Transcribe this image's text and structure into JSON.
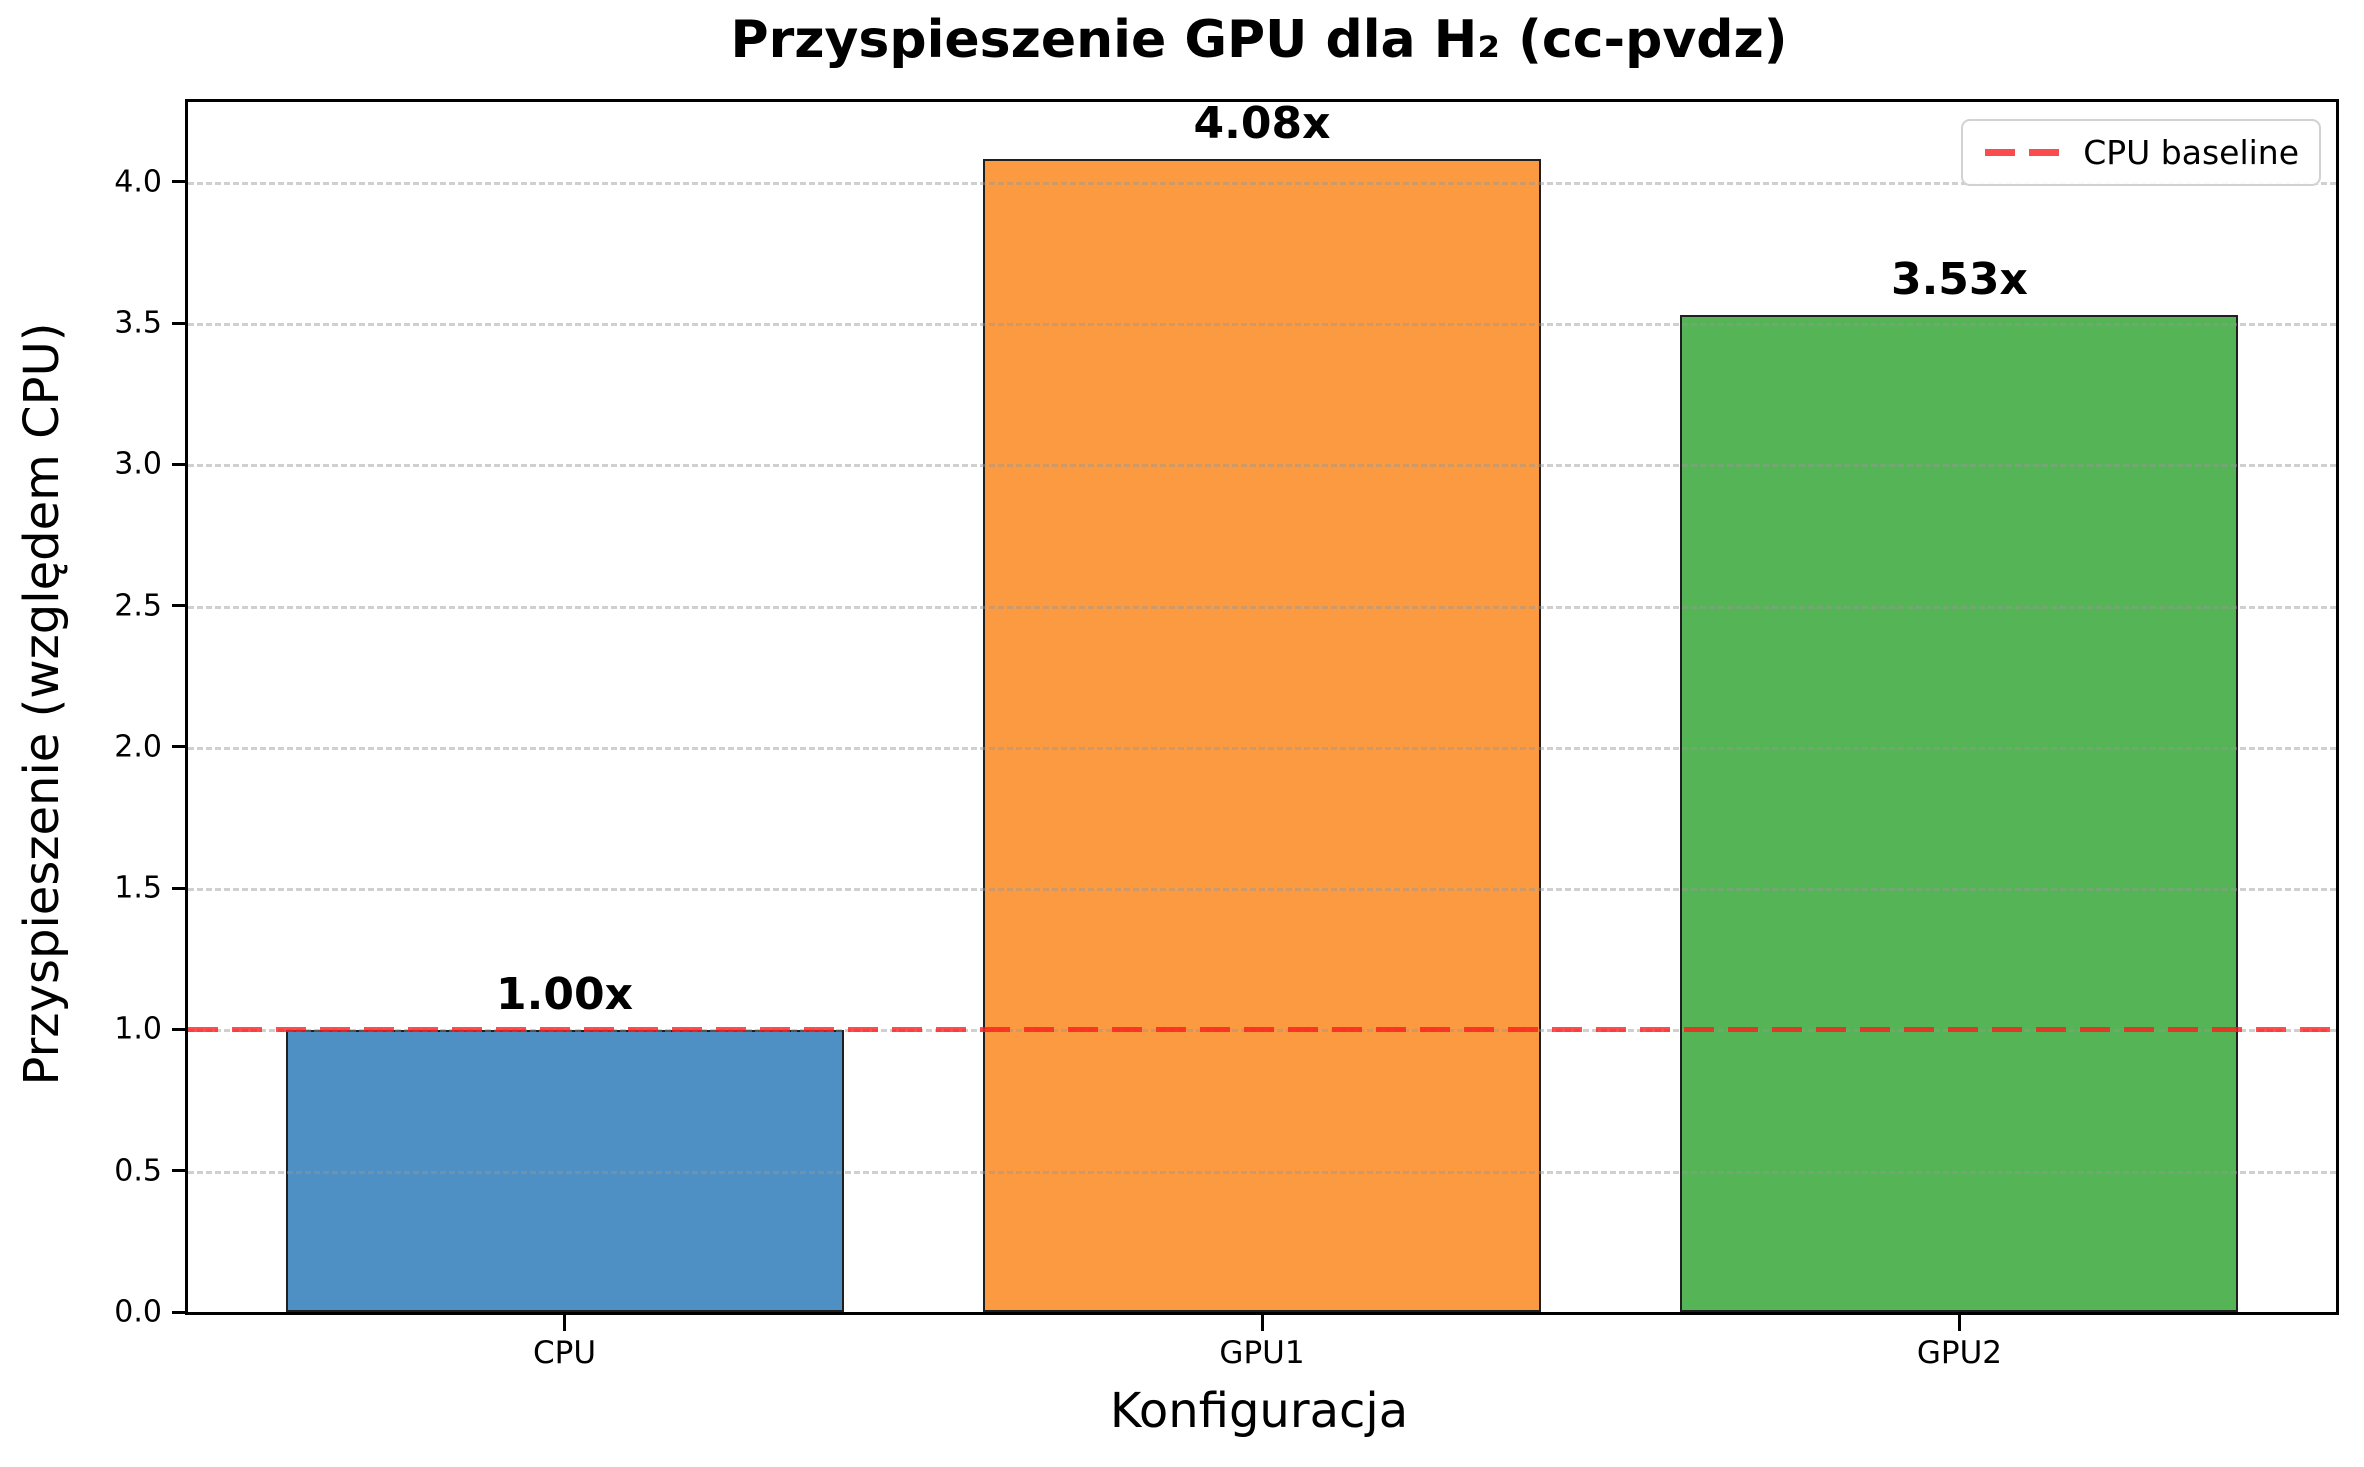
{
  "chart_data": {
    "type": "bar",
    "title": "Przyspieszenie GPU dla H₂ (cc-pvdz)",
    "xlabel": "Konfiguracja",
    "ylabel": "Przyspieszenie (względem CPU)",
    "categories": [
      "CPU",
      "GPU1",
      "GPU2"
    ],
    "values": [
      1.0,
      4.08,
      3.53
    ],
    "bar_labels": [
      "1.00x",
      "4.08x",
      "3.53x"
    ],
    "bar_colors": [
      "#4e90c3",
      "#fb9a41",
      "#55b456"
    ],
    "bar_edge_color": "#1f1f1f",
    "yticks": [
      0.0,
      0.5,
      1.0,
      1.5,
      2.0,
      2.5,
      3.0,
      3.5,
      4.0
    ],
    "ytick_labels": [
      "0.0",
      "0.5",
      "1.0",
      "1.5",
      "2.0",
      "2.5",
      "3.0",
      "3.5",
      "4.0"
    ],
    "ylim": [
      0,
      4.283
    ],
    "grid": {
      "on": true,
      "axis": "y",
      "style": "dashed",
      "color": "rgba(150,150,150,0.45)"
    },
    "baseline": {
      "value": 1.0,
      "label": "CPU baseline",
      "line_color": "rgba(255,25,25,0.78)",
      "legend_swatch_color": "#f94d4d",
      "style": "dashed"
    },
    "legend": {
      "position": "upper right",
      "entries": [
        "CPU baseline"
      ]
    }
  }
}
